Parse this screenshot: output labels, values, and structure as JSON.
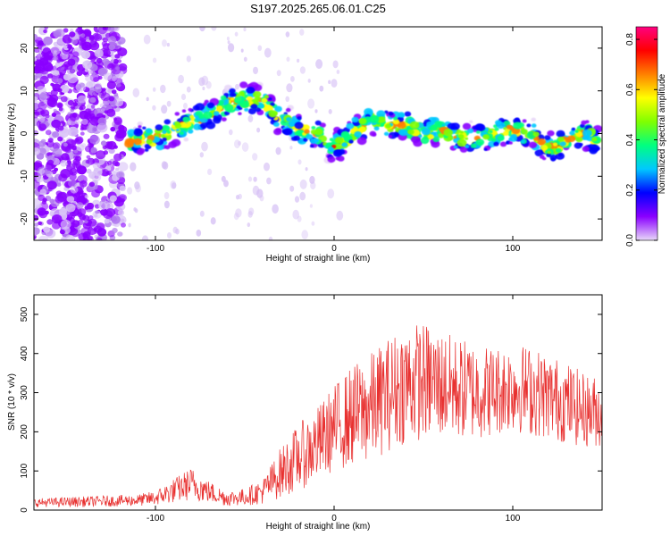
{
  "chart_data": [
    {
      "type": "heatmap",
      "title": "S197.2025.265.06.01.C25",
      "xlabel": "Height of straight line (km)",
      "ylabel": "Frequency (Hz)",
      "xlim": [
        -168,
        150
      ],
      "ylim": [
        -25,
        25
      ],
      "x_ticks": [
        -100,
        0,
        100
      ],
      "y_ticks": [
        -20,
        -10,
        0,
        10,
        20
      ],
      "colorbar": {
        "label": "Normalized spectral amplitude",
        "range": [
          0.0,
          0.85
        ],
        "ticks": [
          0.0,
          0.2,
          0.4,
          0.6,
          0.8
        ],
        "colors": [
          "#e8d8f8",
          "#8a00ff",
          "#0000ff",
          "#00c8ff",
          "#00ff80",
          "#80ff00",
          "#ffff00",
          "#ff8000",
          "#ff0000",
          "#ff0080"
        ]
      },
      "ridge": {
        "x": [
          -115,
          -100,
          -90,
          -80,
          -70,
          -60,
          -52,
          -45,
          -38,
          -30,
          -20,
          -10,
          -5,
          0,
          5,
          10,
          20,
          25,
          30,
          40,
          50,
          60,
          70,
          80,
          90,
          100,
          110,
          118,
          125,
          130,
          140,
          148
        ],
        "y": [
          -2,
          -1,
          1,
          3,
          4,
          7,
          8,
          8,
          7,
          3,
          1,
          0,
          -2,
          -3,
          -2,
          0,
          3,
          3,
          2,
          2,
          0,
          1,
          -1,
          -1,
          0,
          1,
          0,
          -3,
          -3,
          -1,
          0,
          -2
        ]
      },
      "noise_region_km": [
        -168,
        -118
      ]
    },
    {
      "type": "line",
      "xlabel": "Height of straight line (km)",
      "ylabel": "SNR (10 * v/v)",
      "xlim": [
        -168,
        150
      ],
      "ylim": [
        0,
        550
      ],
      "x_ticks": [
        -100,
        0,
        100
      ],
      "y_ticks": [
        0,
        100,
        200,
        300,
        400,
        500
      ],
      "line_color": "#e8302f",
      "envelope": {
        "x": [
          -168,
          -140,
          -110,
          -100,
          -90,
          -80,
          -70,
          -60,
          -50,
          -40,
          -30,
          -20,
          -10,
          0,
          10,
          20,
          30,
          40,
          50,
          60,
          70,
          80,
          90,
          100,
          110,
          120,
          130,
          140,
          150
        ],
        "lo": [
          8,
          8,
          10,
          12,
          18,
          25,
          18,
          10,
          12,
          15,
          30,
          50,
          70,
          100,
          110,
          120,
          150,
          170,
          180,
          180,
          180,
          180,
          190,
          200,
          190,
          180,
          170,
          160,
          160
        ],
        "hi": [
          30,
          35,
          40,
          50,
          80,
          110,
          75,
          50,
          55,
          80,
          160,
          220,
          260,
          320,
          370,
          400,
          440,
          480,
          480,
          460,
          440,
          430,
          420,
          430,
          420,
          400,
          380,
          350,
          340
        ]
      }
    }
  ]
}
